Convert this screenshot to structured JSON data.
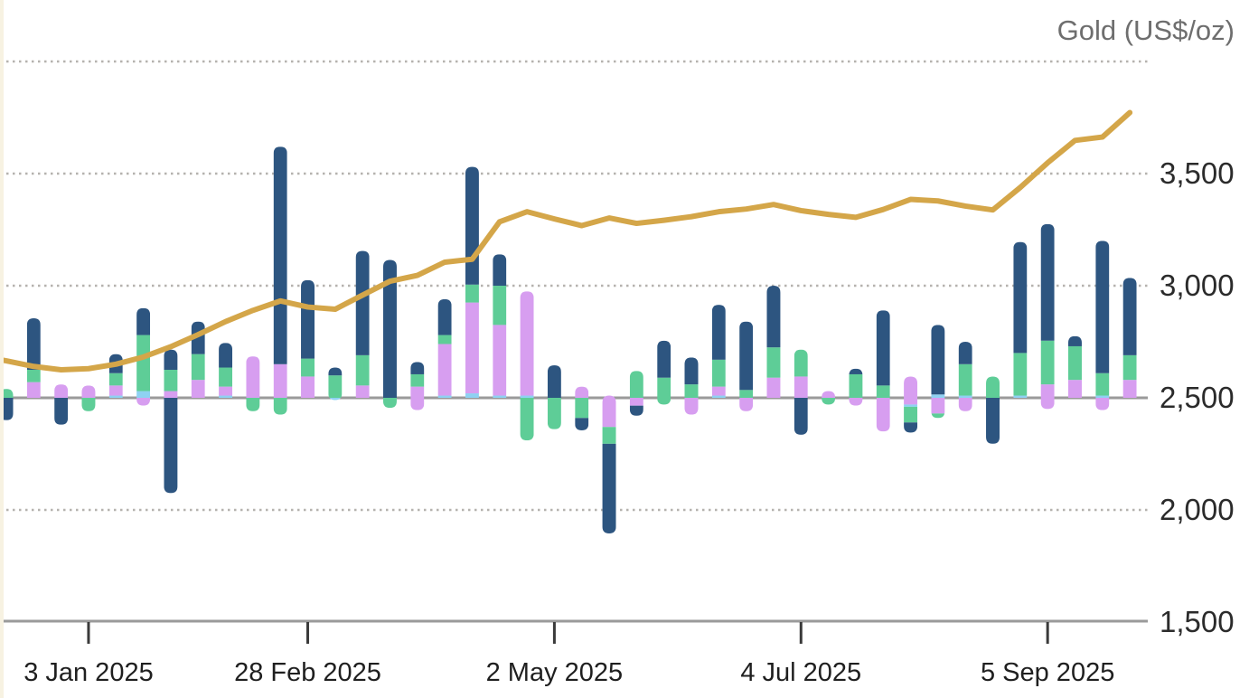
{
  "title": "Gold (US$/oz)",
  "colors": {
    "navy": "#2d5580",
    "green": "#5ecd97",
    "purple": "#d79ef0",
    "lightblue": "#8fd1f2",
    "gold_line": "#d4a649",
    "baseline": "#9a9a9a",
    "axis_line": "#9a9a9a",
    "gridline": "#b5b2ae",
    "tick_mark": "#3a3a3a",
    "x_label_text": "#1f1f1f",
    "y_label_text": "#2b2b2b",
    "title_text": "#6e6e6e",
    "left_strip": "#f7f2e2"
  },
  "chart_data": {
    "type": "bar",
    "subtype": "weekly stacked flow bars with gold price line overlay",
    "title": "Gold (US$/oz)",
    "legend": "none visible",
    "y_axis_right": {
      "labels": [
        "3,500",
        "3,000",
        "2,500",
        "2,000",
        "1,500"
      ],
      "values": [
        3500,
        3000,
        2500,
        2000,
        1500
      ],
      "dotted_gridlines_at": [
        4000,
        3500,
        3000,
        2000
      ],
      "solid_lines_at": [
        2500,
        1500
      ],
      "range_shown": [
        1500,
        4075
      ]
    },
    "x_axis": {
      "tick_labels": [
        "3 Jan 2025",
        "28 Feb 2025",
        "2 May 2025",
        "4 Jul 2025",
        "5 Sep 2025"
      ],
      "tick_week_index": [
        3,
        11,
        20,
        29,
        38
      ]
    },
    "bars_note": "Stacked weekly bars use an unlabeled axis whose zero sits on the 2,500 gridline; segment sizes below are expressed in right-axis units. Color keys: n=navy, g=green, p=purple, b=lightblue. pos = stacked up from zero line, neg = stacked down.",
    "bars": [
      {
        "week": "13 Dec 2024",
        "pos": [
          [
            "g",
            40
          ]
        ],
        "neg": [
          [
            "n",
            100
          ]
        ]
      },
      {
        "week": "20 Dec 2024",
        "pos": [
          [
            "p",
            70
          ],
          [
            "g",
            55
          ],
          [
            "n",
            230
          ]
        ],
        "neg": []
      },
      {
        "week": "27 Dec 2024",
        "pos": [
          [
            "p",
            60
          ]
        ],
        "neg": [
          [
            "n",
            120
          ]
        ]
      },
      {
        "week": "3 Jan 2025",
        "pos": [
          [
            "p",
            55
          ]
        ],
        "neg": [
          [
            "g",
            60
          ]
        ]
      },
      {
        "week": "10 Jan 2025",
        "pos": [
          [
            "b",
            10
          ],
          [
            "p",
            45
          ],
          [
            "g",
            55
          ],
          [
            "n",
            85
          ]
        ],
        "neg": []
      },
      {
        "week": "17 Jan 2025",
        "pos": [
          [
            "b",
            30
          ],
          [
            "g",
            250
          ],
          [
            "n",
            120
          ]
        ],
        "neg": [
          [
            "p",
            35
          ]
        ]
      },
      {
        "week": "24 Jan 2025",
        "pos": [
          [
            "p",
            30
          ],
          [
            "g",
            95
          ],
          [
            "n",
            90
          ]
        ],
        "neg": [
          [
            "n",
            425
          ]
        ]
      },
      {
        "week": "31 Jan 2025",
        "pos": [
          [
            "p",
            80
          ],
          [
            "g",
            115
          ],
          [
            "n",
            145
          ]
        ],
        "neg": []
      },
      {
        "week": "7 Feb 2025",
        "pos": [
          [
            "b",
            10
          ],
          [
            "p",
            40
          ],
          [
            "g",
            85
          ],
          [
            "n",
            110
          ]
        ],
        "neg": []
      },
      {
        "week": "14 Feb 2025",
        "pos": [
          [
            "p",
            185
          ]
        ],
        "neg": [
          [
            "g",
            60
          ]
        ]
      },
      {
        "week": "21 Feb 2025",
        "pos": [
          [
            "p",
            150
          ],
          [
            "n",
            970
          ]
        ],
        "neg": [
          [
            "g",
            75
          ]
        ]
      },
      {
        "week": "28 Feb 2025",
        "pos": [
          [
            "p",
            95
          ],
          [
            "g",
            80
          ],
          [
            "n",
            350
          ]
        ],
        "neg": []
      },
      {
        "week": "7 Mar 2025",
        "pos": [
          [
            "g",
            100
          ],
          [
            "n",
            35
          ]
        ],
        "neg": [
          [
            "b",
            10
          ]
        ]
      },
      {
        "week": "14 Mar 2025",
        "pos": [
          [
            "p",
            55
          ],
          [
            "g",
            135
          ],
          [
            "n",
            465
          ]
        ],
        "neg": []
      },
      {
        "week": "21 Mar 2025",
        "pos": [
          [
            "n",
            615
          ]
        ],
        "neg": [
          [
            "g",
            45
          ]
        ]
      },
      {
        "week": "28 Mar 2025",
        "pos": [
          [
            "p",
            50
          ],
          [
            "g",
            55
          ],
          [
            "n",
            55
          ]
        ],
        "neg": [
          [
            "p",
            55
          ]
        ]
      },
      {
        "week": "4 Apr 2025",
        "pos": [
          [
            "b",
            10
          ],
          [
            "p",
            230
          ],
          [
            "g",
            40
          ],
          [
            "n",
            160
          ]
        ],
        "neg": []
      },
      {
        "week": "11 Apr 2025",
        "pos": [
          [
            "b",
            20
          ],
          [
            "p",
            405
          ],
          [
            "g",
            80
          ],
          [
            "n",
            525
          ]
        ],
        "neg": []
      },
      {
        "week": "18 Apr 2025",
        "pos": [
          [
            "b",
            10
          ],
          [
            "p",
            315
          ],
          [
            "g",
            175
          ],
          [
            "n",
            140
          ]
        ],
        "neg": []
      },
      {
        "week": "25 Apr 2025",
        "pos": [
          [
            "b",
            10
          ],
          [
            "p",
            465
          ]
        ],
        "neg": [
          [
            "g",
            190
          ]
        ]
      },
      {
        "week": "2 May 2025",
        "pos": [
          [
            "n",
            145
          ]
        ],
        "neg": [
          [
            "g",
            140
          ]
        ]
      },
      {
        "week": "9 May 2025",
        "pos": [
          [
            "p",
            50
          ]
        ],
        "neg": [
          [
            "g",
            90
          ],
          [
            "n",
            55
          ]
        ]
      },
      {
        "week": "16 May 2025",
        "pos": [
          [
            "p",
            10
          ]
        ],
        "neg": [
          [
            "p",
            130
          ],
          [
            "g",
            75
          ],
          [
            "n",
            400
          ]
        ]
      },
      {
        "week": "23 May 2025",
        "pos": [
          [
            "g",
            120
          ]
        ],
        "neg": [
          [
            "p",
            35
          ],
          [
            "n",
            45
          ]
        ]
      },
      {
        "week": "30 May 2025",
        "pos": [
          [
            "g",
            90
          ],
          [
            "n",
            165
          ]
        ],
        "neg": [
          [
            "g",
            30
          ]
        ]
      },
      {
        "week": "6 Jun 2025",
        "pos": [
          [
            "g",
            60
          ],
          [
            "n",
            120
          ]
        ],
        "neg": [
          [
            "p",
            75
          ]
        ]
      },
      {
        "week": "13 Jun 2025",
        "pos": [
          [
            "b",
            10
          ],
          [
            "p",
            40
          ],
          [
            "g",
            120
          ],
          [
            "n",
            245
          ]
        ],
        "neg": []
      },
      {
        "week": "20 Jun 2025",
        "pos": [
          [
            "g",
            35
          ],
          [
            "n",
            305
          ]
        ],
        "neg": [
          [
            "p",
            60
          ]
        ]
      },
      {
        "week": "27 Jun 2025",
        "pos": [
          [
            "p",
            90
          ],
          [
            "g",
            135
          ],
          [
            "n",
            275
          ]
        ],
        "neg": []
      },
      {
        "week": "4 Jul 2025",
        "pos": [
          [
            "p",
            95
          ],
          [
            "g",
            120
          ]
        ],
        "neg": [
          [
            "n",
            165
          ]
        ]
      },
      {
        "week": "11 Jul 2025",
        "pos": [
          [
            "p",
            30
          ]
        ],
        "neg": [
          [
            "g",
            30
          ]
        ]
      },
      {
        "week": "18 Jul 2025",
        "pos": [
          [
            "g",
            105
          ],
          [
            "n",
            25
          ]
        ],
        "neg": [
          [
            "p",
            35
          ]
        ]
      },
      {
        "week": "25 Jul 2025",
        "pos": [
          [
            "g",
            55
          ],
          [
            "n",
            335
          ]
        ],
        "neg": [
          [
            "p",
            150
          ]
        ]
      },
      {
        "week": "1 Aug 2025",
        "pos": [
          [
            "p",
            95
          ]
        ],
        "neg": [
          [
            "p",
            30
          ],
          [
            "b",
            10
          ],
          [
            "g",
            70
          ],
          [
            "n",
            45
          ]
        ]
      },
      {
        "week": "8 Aug 2025",
        "pos": [
          [
            "b",
            15
          ],
          [
            "n",
            310
          ]
        ],
        "neg": [
          [
            "p",
            70
          ],
          [
            "g",
            20
          ]
        ]
      },
      {
        "week": "15 Aug 2025",
        "pos": [
          [
            "b",
            10
          ],
          [
            "g",
            140
          ],
          [
            "n",
            100
          ]
        ],
        "neg": [
          [
            "p",
            60
          ]
        ]
      },
      {
        "week": "22 Aug 2025",
        "pos": [
          [
            "g",
            95
          ]
        ],
        "neg": [
          [
            "n",
            205
          ]
        ]
      },
      {
        "week": "29 Aug 2025",
        "pos": [
          [
            "b",
            10
          ],
          [
            "g",
            190
          ],
          [
            "n",
            495
          ]
        ],
        "neg": []
      },
      {
        "week": "5 Sep 2025",
        "pos": [
          [
            "p",
            60
          ],
          [
            "g",
            195
          ],
          [
            "n",
            520
          ]
        ],
        "neg": [
          [
            "p",
            50
          ]
        ]
      },
      {
        "week": "12 Sep 2025",
        "pos": [
          [
            "p",
            80
          ],
          [
            "g",
            150
          ],
          [
            "n",
            45
          ]
        ],
        "neg": []
      },
      {
        "week": "19 Sep 2025",
        "pos": [
          [
            "b",
            10
          ],
          [
            "g",
            100
          ],
          [
            "n",
            590
          ]
        ],
        "neg": [
          [
            "p",
            55
          ]
        ]
      },
      {
        "week": "26 Sep 2025",
        "pos": [
          [
            "p",
            80
          ],
          [
            "g",
            110
          ],
          [
            "n",
            345
          ]
        ],
        "neg": []
      }
    ],
    "line": {
      "name": "Gold price (US$/oz)",
      "pre_point_value": 2670,
      "values": [
        2665,
        2640,
        2625,
        2630,
        2650,
        2682,
        2728,
        2782,
        2840,
        2890,
        2932,
        2905,
        2895,
        2958,
        3020,
        3046,
        3105,
        3118,
        3285,
        3330,
        3298,
        3268,
        3302,
        3278,
        3292,
        3308,
        3330,
        3342,
        3362,
        3335,
        3318,
        3305,
        3340,
        3385,
        3378,
        3355,
        3338,
        3438,
        3548,
        3648,
        3663,
        3772
      ]
    }
  }
}
